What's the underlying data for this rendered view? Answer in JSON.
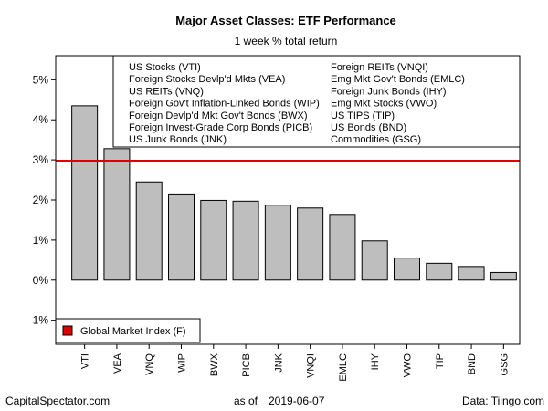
{
  "chart_data": {
    "type": "bar",
    "title": "Major Asset Classes: ETF Performance",
    "subtitle": "1 week % total return",
    "categories": [
      "VTI",
      "VEA",
      "VNQ",
      "WIP",
      "BWX",
      "PICB",
      "JNK",
      "VNQI",
      "EMLC",
      "IHY",
      "VWO",
      "TIP",
      "BND",
      "GSG"
    ],
    "values": [
      4.35,
      3.28,
      2.45,
      2.15,
      1.99,
      1.97,
      1.87,
      1.8,
      1.64,
      0.98,
      0.55,
      0.42,
      0.34,
      0.19
    ],
    "ylim": [
      -1.6,
      5.6
    ],
    "yticks": [
      -1,
      0,
      1,
      2,
      3,
      4,
      5
    ],
    "ytick_labels": [
      "-1%",
      "0%",
      "1%",
      "2%",
      "3%",
      "4%",
      "5%"
    ],
    "reference_line": {
      "label": "Global Market Index (F)",
      "value": 2.98,
      "color": "#e00000"
    },
    "bar_color": "#bebebe",
    "key_left": [
      "US Stocks (VTI)",
      "Foreign Stocks Devlp'd Mkts (VEA)",
      "US REITs (VNQ)",
      "Foreign Gov't Inflation-Linked Bonds (WIP)",
      "Foreign Devlp'd Mkt Gov't Bonds (BWX)",
      "Foreign Invest-Grade Corp Bonds (PICB)",
      "US Junk Bonds (JNK)"
    ],
    "key_right": [
      "Foreign REITs (VNQI)",
      "Emg Mkt Gov't Bonds (EMLC)",
      "Foreign Junk Bonds (IHY)",
      "Emg Mkt Stocks (VWO)",
      "US TIPS (TIP)",
      "US Bonds (BND)",
      "Commodities (GSG)"
    ],
    "grid": false
  },
  "footer": {
    "source_left": "CapitalSpectator.com",
    "date_prefix": "as of",
    "date": "2019-06-07",
    "source_right": "Data: Tiingo.com"
  }
}
